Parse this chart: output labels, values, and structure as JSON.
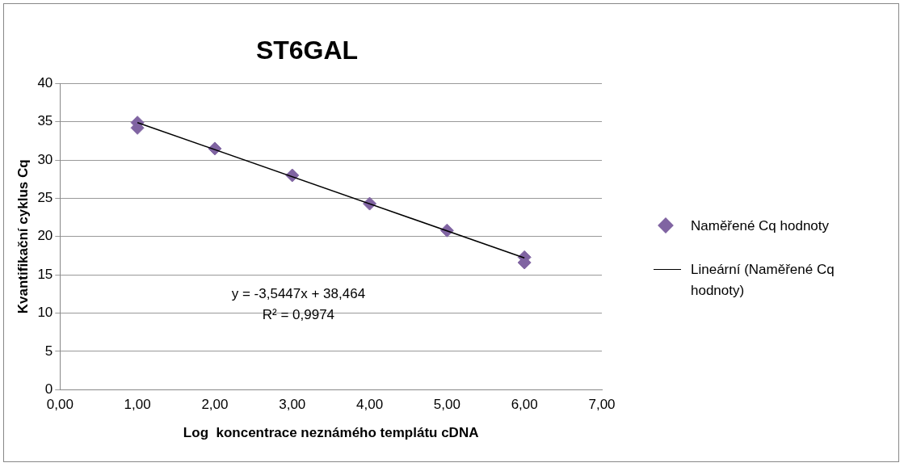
{
  "chart_data": {
    "type": "scatter",
    "title": "ST6GAL",
    "xlabel": "Log  koncentrace neznámého templátu cDNA",
    "ylabel": "Kvantifikační cyklus Cq",
    "annotations": [
      "y = -3,5447x + 38,464",
      "R² = 0,9974"
    ],
    "series": [
      {
        "name": "Naměřené Cq hodnoty",
        "marker": "diamond",
        "color": "#8064a2",
        "x": [
          1,
          1,
          2,
          3,
          4,
          5,
          6,
          6
        ],
        "values": [
          34.9,
          34.2,
          31.5,
          28,
          24.3,
          20.8,
          17.3,
          16.6
        ]
      },
      {
        "name": "Lineární (Naměřené Cq hodnoty)",
        "type": "line",
        "color": "#000000",
        "x": [
          1,
          6
        ],
        "values": [
          34.9,
          17.2
        ]
      }
    ],
    "xlim": [
      0,
      7
    ],
    "xticks": [
      {
        "value": 0,
        "label": "0,00"
      },
      {
        "value": 1,
        "label": "1,00"
      },
      {
        "value": 2,
        "label": "2,00"
      },
      {
        "value": 3,
        "label": "3,00"
      },
      {
        "value": 4,
        "label": "4,00"
      },
      {
        "value": 5,
        "label": "5,00"
      },
      {
        "value": 6,
        "label": "6,00"
      },
      {
        "value": 7,
        "label": "7,00"
      }
    ],
    "ylim": [
      0,
      40
    ],
    "yticks": [
      0,
      5,
      10,
      15,
      20,
      25,
      30,
      35,
      40
    ],
    "grid": "y",
    "legend": "right"
  }
}
